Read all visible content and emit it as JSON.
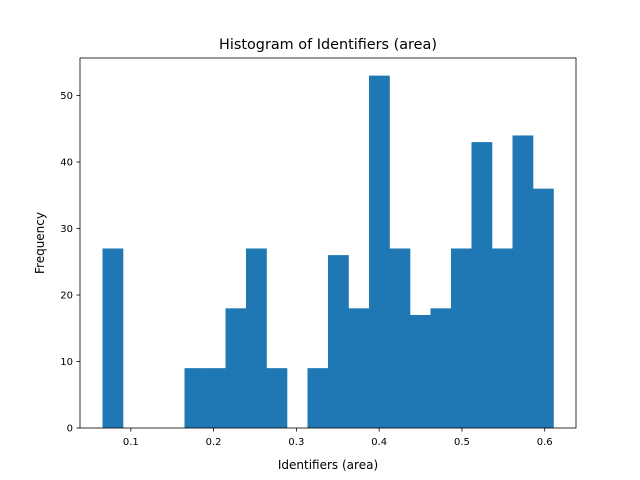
{
  "chart_data": {
    "type": "bar",
    "title": "Histogram of Identifiers (area)",
    "xlabel": "Identifiers (area)",
    "ylabel": "Frequency",
    "bins": {
      "start": 0.0658,
      "end": 0.6106,
      "counts": [
        27,
        0,
        0,
        0,
        9,
        9,
        18,
        27,
        9,
        0,
        9,
        26,
        18,
        53,
        27,
        17,
        18,
        27,
        43,
        27,
        44,
        36
      ]
    },
    "xlim": [
      0.0386,
      0.6378
    ],
    "ylim": [
      0,
      55.65
    ],
    "xticks": [
      0.1,
      0.2,
      0.3,
      0.4,
      0.5,
      0.6
    ],
    "xtick_labels": [
      "0.1",
      "0.2",
      "0.3",
      "0.4",
      "0.5",
      "0.6"
    ],
    "yticks": [
      0,
      10,
      20,
      30,
      40,
      50
    ],
    "ytick_labels": [
      "0",
      "10",
      "20",
      "30",
      "40",
      "50"
    ],
    "bar_color": "#1f77b4",
    "grid": false,
    "legend": "none"
  }
}
